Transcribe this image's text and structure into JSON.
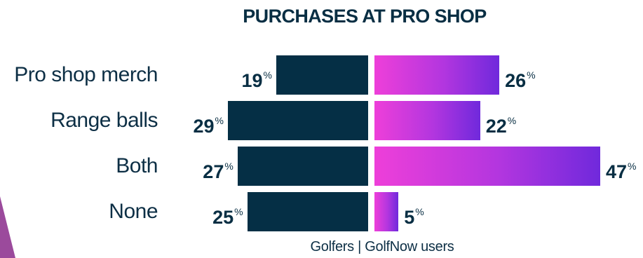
{
  "chart_data": {
    "type": "bar",
    "title": "PURCHASES AT PRO SHOP",
    "categories": [
      "Pro shop merch",
      "Range balls",
      "Both",
      "None"
    ],
    "series": [
      {
        "name": "Golfers",
        "values": [
          19,
          29,
          27,
          25
        ],
        "color": "#052f45"
      },
      {
        "name": "GolfNow users",
        "values": [
          26,
          22,
          47,
          5
        ],
        "color": "#ee3fd9"
      }
    ],
    "unit": "%",
    "legend_text": "Golfers | GolfNow users",
    "xlim": [
      0,
      47
    ]
  }
}
